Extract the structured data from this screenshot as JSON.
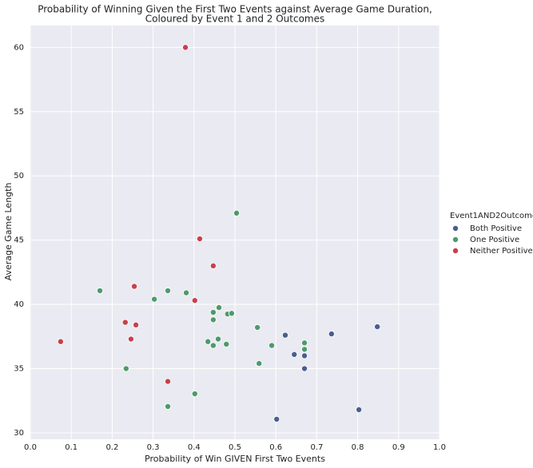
{
  "chart_data": {
    "type": "scatter",
    "title": [
      "Probability of Winning Given the First Two Events against Average Game Duration,",
      "Coloured by Event 1 and 2 Outcomes"
    ],
    "x_label": "Probability of Win GIVEN First Two Events",
    "y_label": "Average Game Length",
    "legend_title": "Event1AND2Outcome",
    "xlim": [
      0,
      1
    ],
    "ylim": [
      29.5,
      61.7
    ],
    "xticks": [
      {
        "value": 0,
        "label": "0.0"
      },
      0.1,
      0.2,
      0.3,
      0.4,
      0.5,
      0.6,
      0.7,
      0.8,
      0.9,
      {
        "value": 1,
        "label": "1.0"
      }
    ],
    "yticks": [
      30,
      35,
      40,
      45,
      50,
      55,
      60
    ],
    "grid": true,
    "series": [
      {
        "name": "Both Positive",
        "color": "#4a5f8f",
        "x": [
          0.848,
          0.736,
          0.623,
          0.645,
          0.67,
          0.67,
          0.602,
          0.803
        ],
        "values": [
          38.26,
          37.7,
          37.6,
          36.1,
          35.0,
          36.0,
          31.06,
          31.8
        ]
      },
      {
        "name": "One Positive",
        "color": "#4e9a6a",
        "x": [
          0.504,
          0.17,
          0.336,
          0.381,
          0.303,
          0.461,
          0.447,
          0.447,
          0.482,
          0.492,
          0.555,
          0.67,
          0.67,
          0.434,
          0.459,
          0.479,
          0.447,
          0.59,
          0.559,
          0.234,
          0.402,
          0.336
        ],
        "values": [
          47.1,
          41.06,
          41.06,
          40.9,
          40.4,
          39.75,
          39.38,
          38.8,
          39.25,
          39.3,
          38.2,
          37.0,
          36.5,
          37.1,
          37.3,
          36.9,
          36.8,
          36.8,
          35.4,
          35.0,
          33.04,
          32.05
        ]
      },
      {
        "name": "Neither Positive",
        "color": "#c8404a",
        "x": [
          0.379,
          0.414,
          0.447,
          0.254,
          0.402,
          0.232,
          0.258,
          0.246,
          0.074,
          0.336
        ],
        "values": [
          60.0,
          45.1,
          43.0,
          41.4,
          40.3,
          38.6,
          38.4,
          37.3,
          37.1,
          34.0
        ]
      }
    ]
  }
}
